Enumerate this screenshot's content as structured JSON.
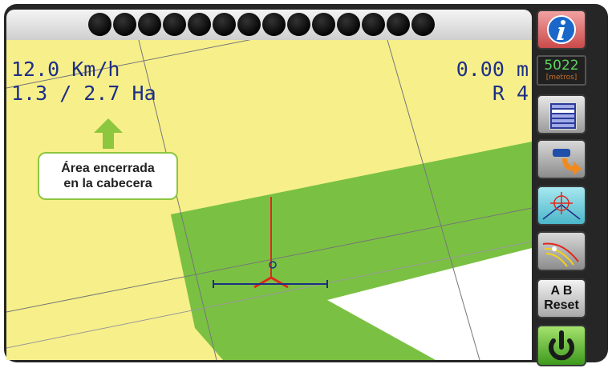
{
  "status_bar": {
    "led_count": 14
  },
  "hud": {
    "speed": "12.0 Km/h",
    "area": "1.3 / 2.7 Ha",
    "offset": "0.00 m",
    "row": "R 4"
  },
  "callout": {
    "line1": "Área encerrada",
    "line2": "en la cabecera"
  },
  "sidebar": {
    "info_icon": "info-icon",
    "counter_value": "5022",
    "counter_unit": "[metros]",
    "ab_line1": "A B",
    "ab_line2": "Reset"
  },
  "colors": {
    "field": "#f7ef8a",
    "coverage": "#7ac143",
    "uncovered": "#ffffff",
    "hud_text": "#1d2f86",
    "guidance": "#e0281c",
    "boom": "#1d2f86",
    "arrow": "#8dc63f"
  }
}
